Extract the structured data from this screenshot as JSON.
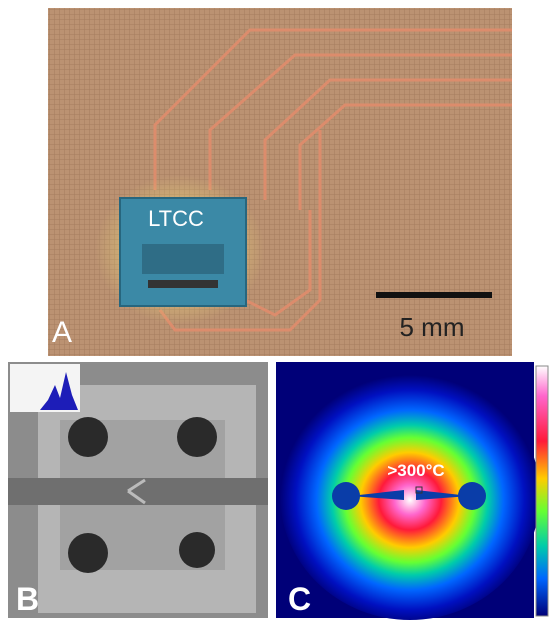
{
  "panels": [
    {
      "label": "A",
      "annotations": [
        "LTCC"
      ],
      "scale_bar": "5 mm"
    },
    {
      "label": "B"
    },
    {
      "label": "C",
      "annotations": [
        ">300°C"
      ]
    }
  ]
}
